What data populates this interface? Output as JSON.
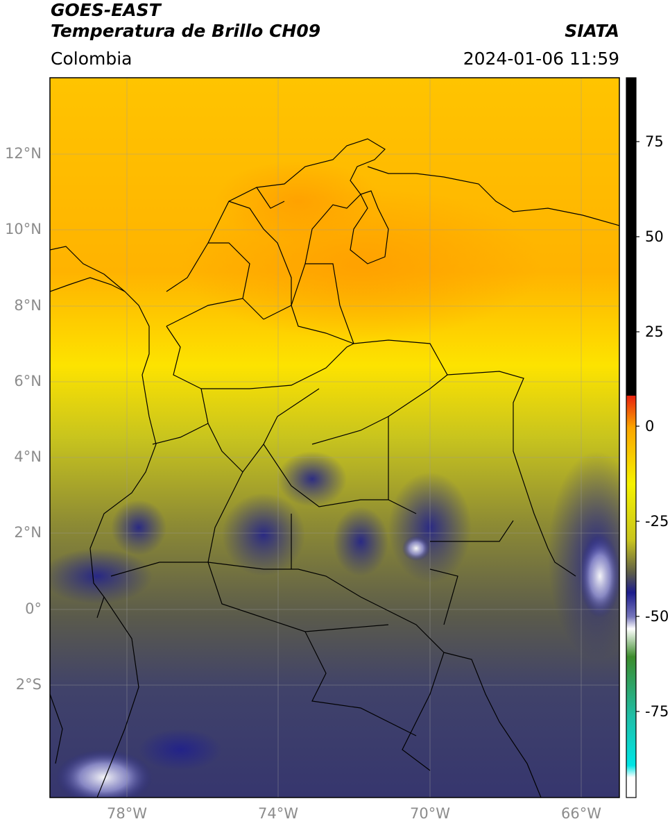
{
  "header": {
    "satellite": "GOES-EAST",
    "product": "Temperatura de Brillo CH09",
    "organization": "SIATA",
    "region": "Colombia",
    "datetime": "2024-01-06 11:59"
  },
  "map": {
    "lat_labels": [
      "12°N",
      "10°N",
      "8°N",
      "6°N",
      "4°N",
      "2°N",
      "0°",
      "2°S"
    ],
    "lon_labels": [
      "78°W",
      "74°W",
      "70°W",
      "66°W"
    ]
  },
  "colorbar": {
    "tick_labels": [
      "75",
      "50",
      "25",
      "0",
      "-25",
      "-50",
      "-75"
    ],
    "colors": {
      "black": "#000000",
      "red": "#e8210f",
      "orange": "#fba600",
      "yellow": "#f5f200",
      "olive": "#6a6a34",
      "navy": "#1c1c8c",
      "white": "#ffffff",
      "green": "#3c8c2c",
      "teal": "#1fbfa8",
      "cyan": "#00e5e5"
    }
  }
}
